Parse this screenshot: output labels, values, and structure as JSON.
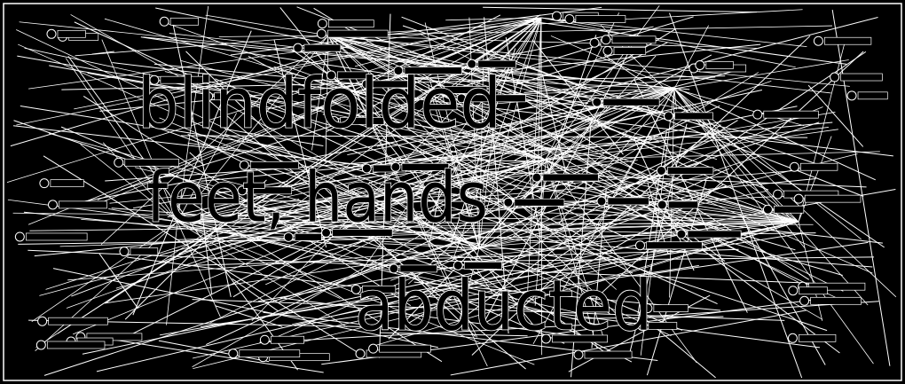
{
  "words": [
    "blindfolded",
    "feet, hands",
    "abducted"
  ]
}
